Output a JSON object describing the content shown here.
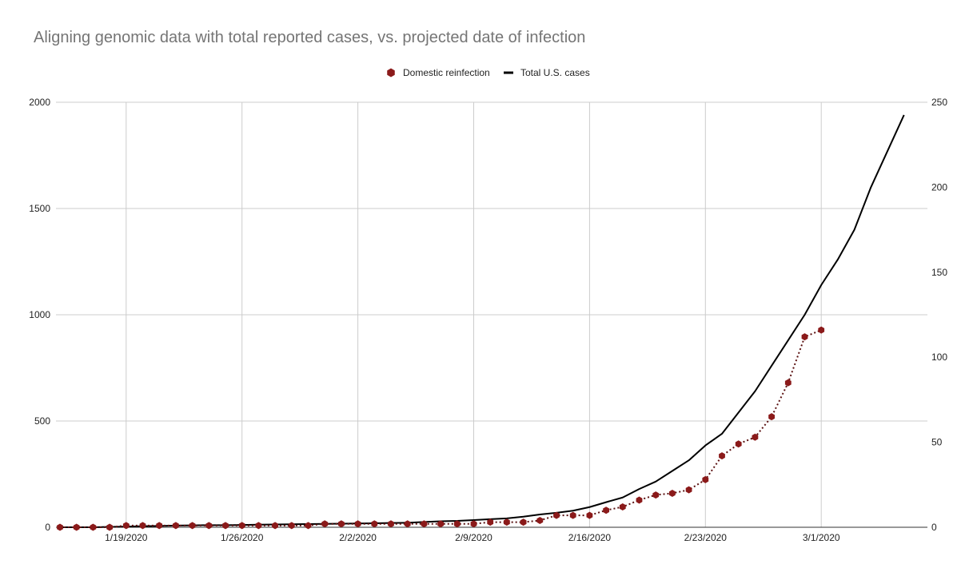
{
  "chart_data": {
    "type": "line",
    "title": "Aligning genomic data with total reported cases, vs. projected date of infection",
    "x_axis": {
      "start": "1/15/2020",
      "end": "3/6/2020",
      "tick_labels": [
        "1/19/2020",
        "1/26/2020",
        "2/2/2020",
        "2/9/2020",
        "2/16/2020",
        "2/23/2020",
        "3/1/2020"
      ],
      "grid": true
    },
    "y_axis_left": {
      "min": 0,
      "max": 2000,
      "ticks": [
        "0",
        "500",
        "1000",
        "1500",
        "2000"
      ]
    },
    "y_axis_right": {
      "min": 0,
      "max": 250,
      "ticks": [
        "0",
        "50",
        "100",
        "150",
        "200",
        "250"
      ]
    },
    "legend_position": "top-center",
    "series": [
      {
        "name": "Domestic reinfection",
        "axis": "right",
        "style": "dotted line with hexagon markers",
        "color": "#8b1a1a",
        "points": [
          [
            "1/15/2020",
            0
          ],
          [
            "1/16/2020",
            0
          ],
          [
            "1/17/2020",
            0
          ],
          [
            "1/18/2020",
            0
          ],
          [
            "1/19/2020",
            1
          ],
          [
            "1/20/2020",
            1
          ],
          [
            "1/21/2020",
            1
          ],
          [
            "1/22/2020",
            1
          ],
          [
            "1/23/2020",
            1
          ],
          [
            "1/24/2020",
            1
          ],
          [
            "1/25/2020",
            1
          ],
          [
            "1/26/2020",
            1
          ],
          [
            "1/27/2020",
            1
          ],
          [
            "1/28/2020",
            1
          ],
          [
            "1/29/2020",
            1
          ],
          [
            "1/30/2020",
            1
          ],
          [
            "1/31/2020",
            2
          ],
          [
            "2/1/2020",
            2
          ],
          [
            "2/2/2020",
            2
          ],
          [
            "2/3/2020",
            2
          ],
          [
            "2/4/2020",
            2
          ],
          [
            "2/5/2020",
            2
          ],
          [
            "2/6/2020",
            2
          ],
          [
            "2/7/2020",
            2
          ],
          [
            "2/8/2020",
            2
          ],
          [
            "2/9/2020",
            2
          ],
          [
            "2/10/2020",
            3
          ],
          [
            "2/11/2020",
            3
          ],
          [
            "2/12/2020",
            3
          ],
          [
            "2/13/2020",
            4
          ],
          [
            "2/14/2020",
            7
          ],
          [
            "2/15/2020",
            7
          ],
          [
            "2/16/2020",
            7
          ],
          [
            "2/17/2020",
            10
          ],
          [
            "2/18/2020",
            12
          ],
          [
            "2/19/2020",
            16
          ],
          [
            "2/20/2020",
            19
          ],
          [
            "2/21/2020",
            20
          ],
          [
            "2/22/2020",
            22
          ],
          [
            "2/23/2020",
            28
          ],
          [
            "2/24/2020",
            42
          ],
          [
            "2/25/2020",
            49
          ],
          [
            "2/26/2020",
            53
          ],
          [
            "2/27/2020",
            65
          ],
          [
            "2/28/2020",
            85
          ],
          [
            "2/29/2020",
            112
          ],
          [
            "3/1/2020",
            116
          ]
        ]
      },
      {
        "name": "Total U.S. cases",
        "axis": "left",
        "style": "solid line",
        "color": "#000000",
        "points": [
          [
            "1/15/2020",
            0
          ],
          [
            "1/16/2020",
            0
          ],
          [
            "1/17/2020",
            0
          ],
          [
            "1/18/2020",
            2
          ],
          [
            "1/19/2020",
            3
          ],
          [
            "1/20/2020",
            5
          ],
          [
            "1/21/2020",
            6
          ],
          [
            "1/22/2020",
            8
          ],
          [
            "1/23/2020",
            9
          ],
          [
            "1/24/2020",
            10
          ],
          [
            "1/25/2020",
            10
          ],
          [
            "1/26/2020",
            11
          ],
          [
            "1/27/2020",
            12
          ],
          [
            "1/28/2020",
            13
          ],
          [
            "1/29/2020",
            14
          ],
          [
            "1/30/2020",
            15
          ],
          [
            "1/31/2020",
            16
          ],
          [
            "2/1/2020",
            17
          ],
          [
            "2/2/2020",
            18
          ],
          [
            "2/3/2020",
            19
          ],
          [
            "2/4/2020",
            20
          ],
          [
            "2/5/2020",
            21
          ],
          [
            "2/6/2020",
            25
          ],
          [
            "2/7/2020",
            28
          ],
          [
            "2/8/2020",
            30
          ],
          [
            "2/9/2020",
            34
          ],
          [
            "2/10/2020",
            38
          ],
          [
            "2/11/2020",
            42
          ],
          [
            "2/12/2020",
            50
          ],
          [
            "2/13/2020",
            60
          ],
          [
            "2/14/2020",
            68
          ],
          [
            "2/15/2020",
            78
          ],
          [
            "2/16/2020",
            95
          ],
          [
            "2/17/2020",
            118
          ],
          [
            "2/18/2020",
            140
          ],
          [
            "2/19/2020",
            180
          ],
          [
            "2/20/2020",
            215
          ],
          [
            "2/21/2020",
            265
          ],
          [
            "2/22/2020",
            315
          ],
          [
            "2/23/2020",
            385
          ],
          [
            "2/24/2020",
            440
          ],
          [
            "2/25/2020",
            540
          ],
          [
            "2/26/2020",
            640
          ],
          [
            "2/27/2020",
            760
          ],
          [
            "2/28/2020",
            880
          ],
          [
            "2/29/2020",
            1000
          ],
          [
            "3/1/2020",
            1140
          ],
          [
            "3/2/2020",
            1260
          ],
          [
            "3/3/2020",
            1400
          ],
          [
            "3/4/2020",
            1600
          ],
          [
            "3/5/2020",
            1770
          ],
          [
            "3/6/2020",
            1940
          ]
        ]
      }
    ]
  }
}
